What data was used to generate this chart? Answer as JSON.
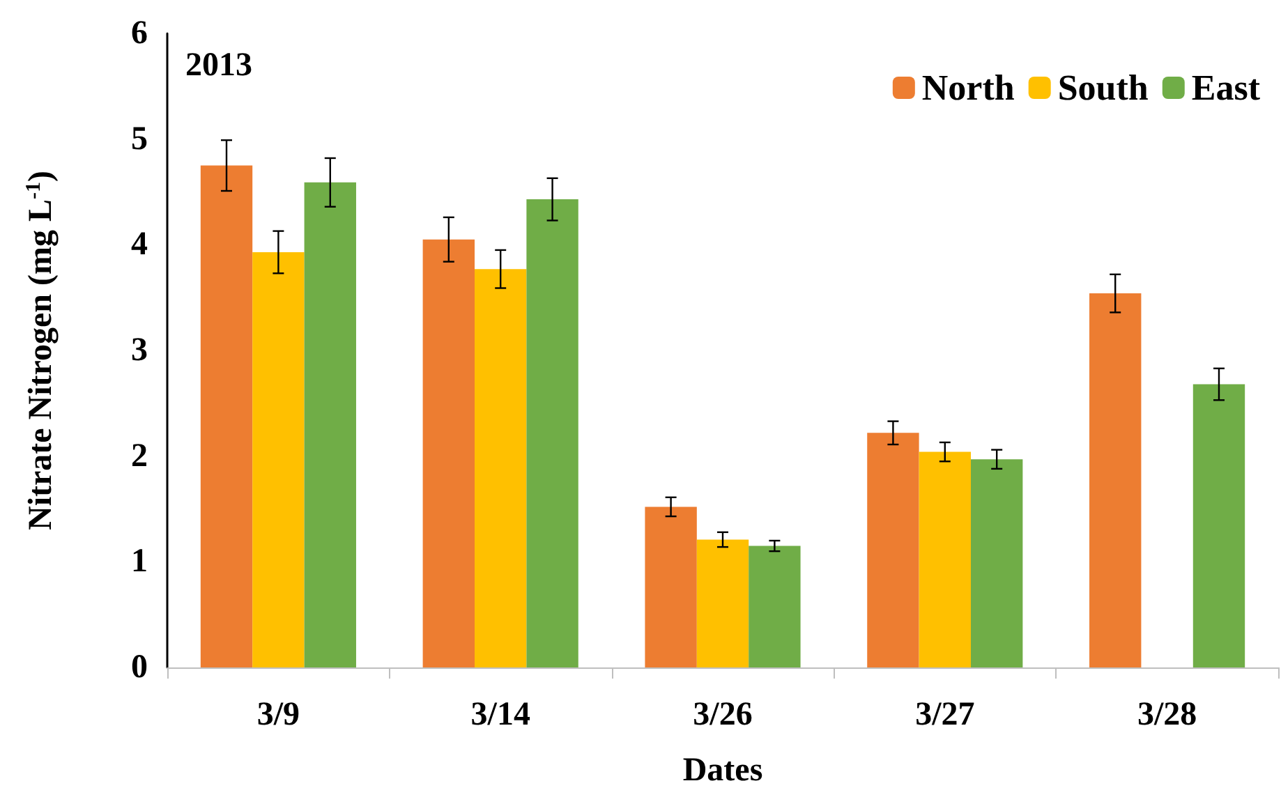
{
  "chart_data": {
    "type": "bar",
    "xlabel": "Dates",
    "ylabel": "Nitrate Nitrogen (mg L$^{-1}$)",
    "annotations": [
      "2013"
    ],
    "categories": [
      "3/9",
      "3/14",
      "3/26",
      "3/27",
      "3/28"
    ],
    "series": [
      {
        "name": "North",
        "color": "#ed7d31",
        "values": [
          4.75,
          4.05,
          1.52,
          2.22,
          3.54
        ],
        "errors": [
          0.24,
          0.21,
          0.09,
          0.11,
          0.18
        ]
      },
      {
        "name": "South",
        "color": "#ffc000",
        "values": [
          3.93,
          3.77,
          1.21,
          2.04,
          null
        ],
        "errors": [
          0.2,
          0.18,
          0.07,
          0.09,
          null
        ]
      },
      {
        "name": "East",
        "color": "#70ad47",
        "values": [
          4.59,
          4.43,
          1.15,
          1.97,
          2.68
        ],
        "errors": [
          0.23,
          0.2,
          0.05,
          0.09,
          0.15
        ]
      }
    ],
    "ylim": [
      0,
      6
    ],
    "yticks": [
      0,
      1,
      2,
      3,
      4,
      5,
      6
    ],
    "grid": false,
    "legend": "top right"
  }
}
